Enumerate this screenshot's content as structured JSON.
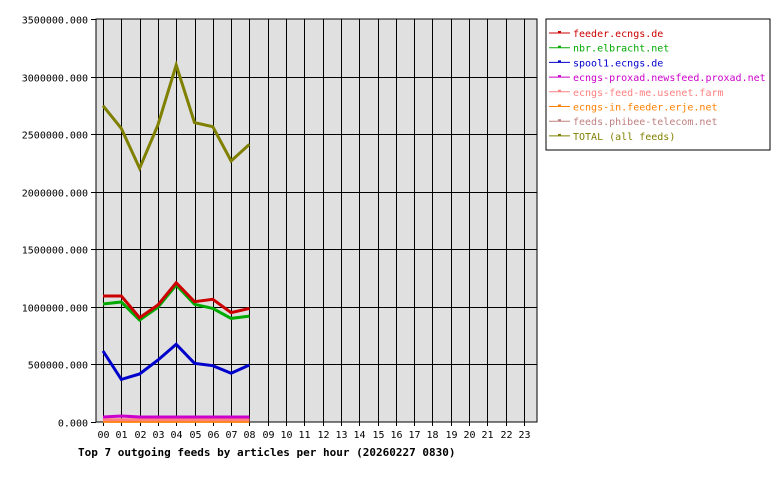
{
  "chart_data": {
    "type": "line",
    "title": "Top 7 outgoing feeds by articles per hour (20260227 0830)",
    "xlabel": "",
    "ylabel": "",
    "ylim": [
      0,
      3500000
    ],
    "yticks": [
      "0.000",
      "500000.000",
      "1000000.000",
      "1500000.000",
      "2000000.000",
      "2500000.000",
      "3000000.000",
      "3500000.000"
    ],
    "ytick_values": [
      0,
      500000,
      1000000,
      1500000,
      2000000,
      2500000,
      3000000,
      3500000
    ],
    "categories": [
      "00",
      "01",
      "02",
      "03",
      "04",
      "05",
      "06",
      "07",
      "08",
      "09",
      "10",
      "11",
      "12",
      "13",
      "14",
      "15",
      "16",
      "17",
      "18",
      "19",
      "20",
      "21",
      "22",
      "23"
    ],
    "grid": true,
    "legend_position": "right",
    "series": [
      {
        "name": "feeder.ecngs.de",
        "color": "#cc0000",
        "values": [
          1094000,
          1094000,
          906000,
          1016000,
          1210000,
          1045000,
          1066000,
          950000,
          987000
        ]
      },
      {
        "name": "nbr.elbracht.net",
        "color": "#00aa00",
        "values": [
          1025000,
          1042000,
          886000,
          996000,
          1190000,
          1022000,
          987000,
          900000,
          920000
        ]
      },
      {
        "name": "spool1.ecngs.de",
        "color": "#0000cc",
        "values": [
          617000,
          370000,
          417000,
          538000,
          675000,
          510000,
          489000,
          423000,
          495000
        ]
      },
      {
        "name": "ecngs-proxad.newsfeed.proxad.net",
        "color": "#cc00cc",
        "values": [
          43000,
          52000,
          43000,
          43000,
          43000,
          43000,
          43000,
          43000,
          43000
        ]
      },
      {
        "name": "ecngs-feed-me.usenet.farm",
        "color": "#ff8080",
        "values": [
          20000,
          20000,
          20000,
          20000,
          20000,
          20000,
          20000,
          20000,
          20000
        ]
      },
      {
        "name": "ecngs-in.feeder.erje.net",
        "color": "#ff8000",
        "values": [
          5000,
          5000,
          5000,
          5000,
          5000,
          5000,
          5000,
          5000,
          5000
        ]
      },
      {
        "name": "feeds.phibee-telecom.net",
        "color": "#c08080",
        "values": [
          12000,
          12000,
          12000,
          12000,
          12000,
          12000,
          12000,
          12000,
          12000
        ]
      },
      {
        "name": "TOTAL (all feeds)",
        "color": "#808000",
        "values": [
          2747000,
          2550000,
          2203000,
          2579000,
          3100000,
          2600000,
          2565000,
          2267000,
          2412000
        ]
      }
    ]
  }
}
